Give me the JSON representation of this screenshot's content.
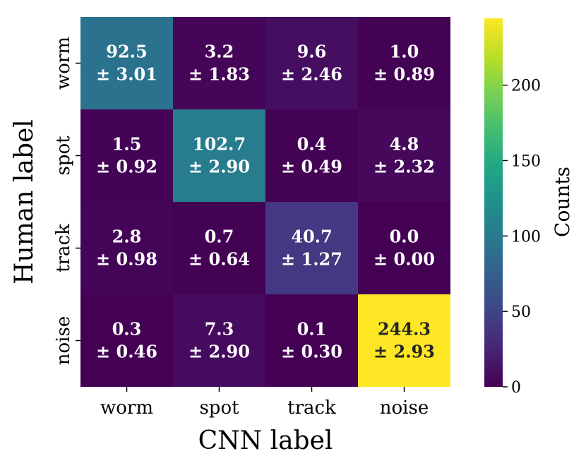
{
  "chart_data": {
    "type": "heatmap",
    "xlabel": "CNN label",
    "ylabel": "Human label",
    "x_categories": [
      "worm",
      "spot",
      "track",
      "noise"
    ],
    "y_categories": [
      "worm",
      "spot",
      "track",
      "noise"
    ],
    "values": [
      [
        92.5,
        3.2,
        9.6,
        1.0
      ],
      [
        1.5,
        102.7,
        0.4,
        4.8
      ],
      [
        2.8,
        0.7,
        40.7,
        0.0
      ],
      [
        0.3,
        7.3,
        0.1,
        244.3
      ]
    ],
    "errors": [
      [
        3.01,
        1.83,
        2.46,
        0.89
      ],
      [
        0.92,
        2.9,
        0.49,
        2.32
      ],
      [
        0.98,
        0.64,
        1.27,
        0.0
      ],
      [
        0.46,
        2.9,
        0.3,
        2.93
      ]
    ],
    "value_labels": [
      [
        "92.5",
        "3.2",
        "9.6",
        "1.0"
      ],
      [
        "1.5",
        "102.7",
        "0.4",
        "4.8"
      ],
      [
        "2.8",
        "0.7",
        "40.7",
        "0.0"
      ],
      [
        "0.3",
        "7.3",
        "0.1",
        "244.3"
      ]
    ],
    "error_labels": [
      [
        "± 3.01",
        "± 1.83",
        "± 2.46",
        "± 0.89"
      ],
      [
        "± 0.92",
        "± 2.90",
        "± 0.49",
        "± 2.32"
      ],
      [
        "± 0.98",
        "± 0.64",
        "± 1.27",
        "± 0.00"
      ],
      [
        "± 0.46",
        "± 2.90",
        "± 0.30",
        "± 2.93"
      ]
    ],
    "colormap": "viridis",
    "colorbar": {
      "label": "Counts",
      "vmin": 0,
      "vmax": 244.3,
      "ticks": [
        0,
        50,
        100,
        150,
        200
      ],
      "tick_labels": [
        "0",
        "50",
        "100",
        "150",
        "200"
      ]
    }
  }
}
